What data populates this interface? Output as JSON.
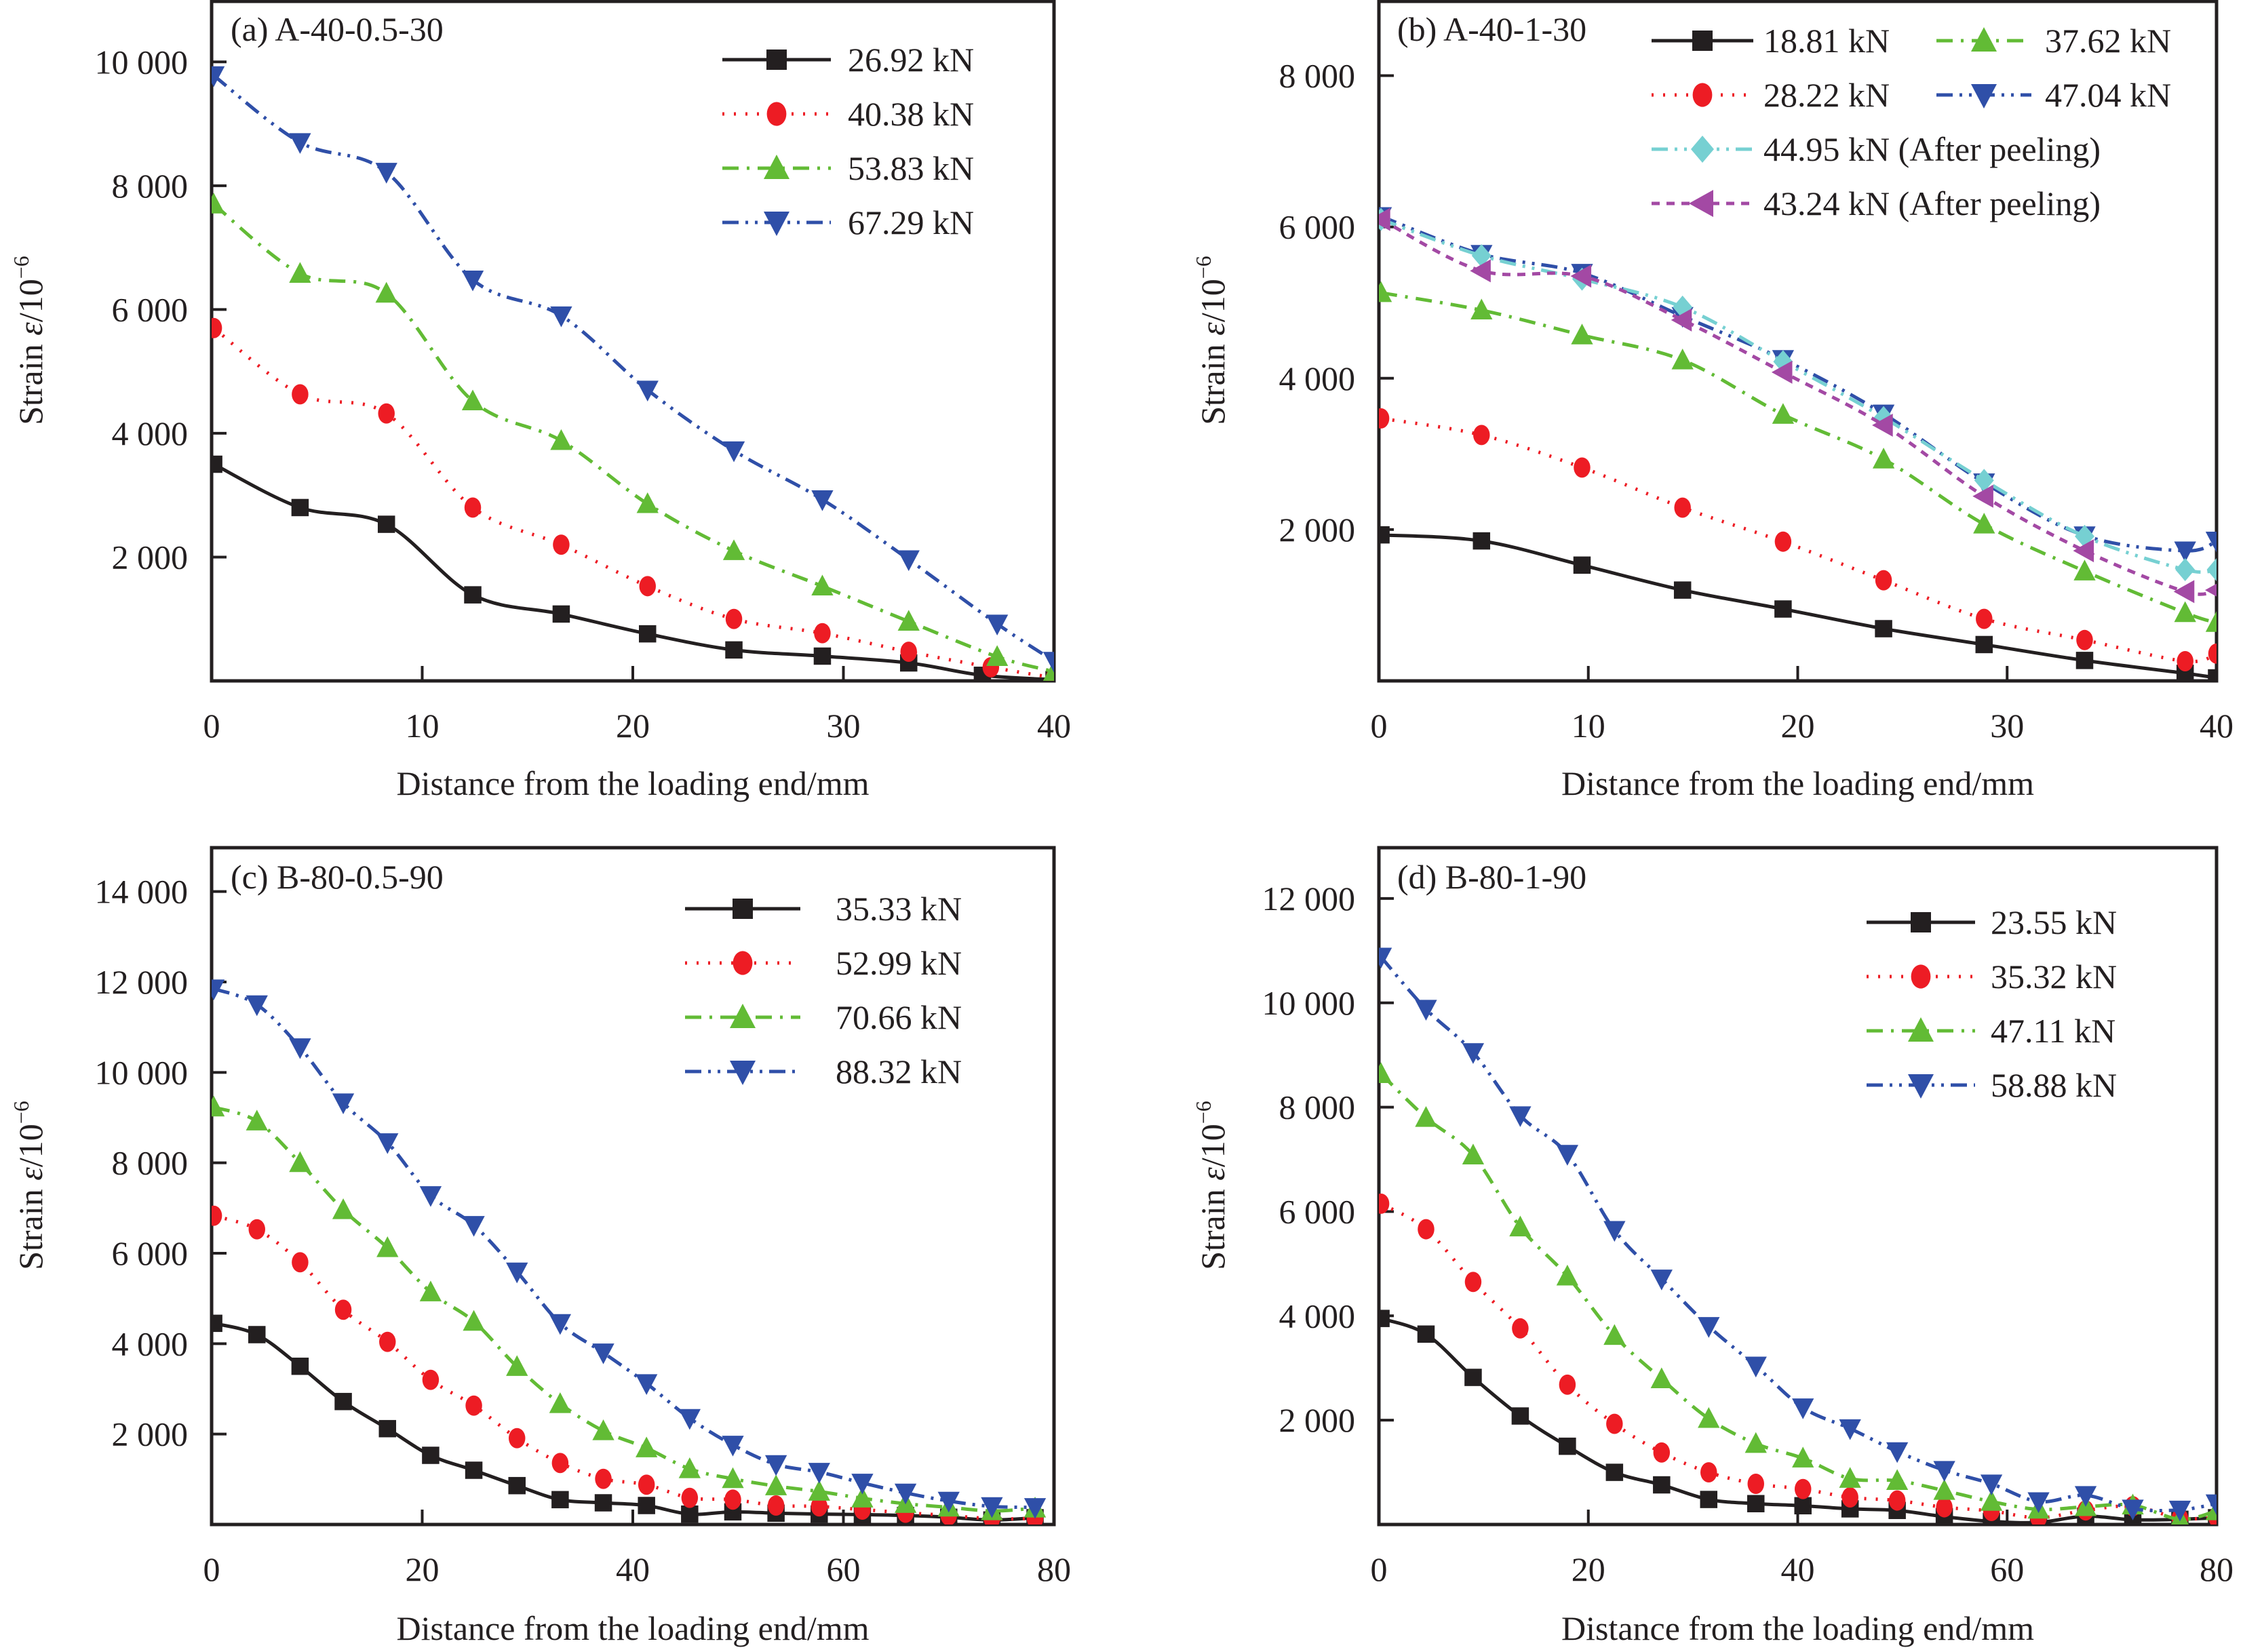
{
  "chart_data": [
    {
      "type": "line",
      "panel_label": "(a) A-40-0.5-30",
      "xlabel": "Distance from the loading end/mm",
      "ylabel_prefix": "Strain ",
      "ylabel_symbol": "ε",
      "ylabel_suffix": "/10",
      "ylabel_exp": "−6",
      "xlim": [
        0,
        40
      ],
      "ylim": [
        0,
        11000
      ],
      "xticks": [
        0,
        10,
        20,
        30,
        40
      ],
      "xtick_labels": [
        "0",
        "10",
        "20",
        "30",
        "40"
      ],
      "yticks": [
        2000,
        4000,
        6000,
        8000,
        10000
      ],
      "ytick_labels": [
        "2 000",
        "4 000",
        "6 000",
        "8 000",
        "10 000"
      ],
      "grid": false,
      "legend_position": "top-right",
      "legend_columns": 1,
      "series": [
        {
          "name": "26.92 kN",
          "color": "#231f20",
          "marker": "square",
          "dash": "solid",
          "x": [
            0.1,
            4.2,
            8.3,
            12.4,
            16.6,
            20.7,
            24.8,
            29.0,
            33.1,
            36.6,
            40.0
          ],
          "y": [
            3500,
            2800,
            2530,
            1390,
            1080,
            760,
            500,
            400,
            290,
            90,
            20
          ]
        },
        {
          "name": "40.38 kN",
          "color": "#ed1c24",
          "marker": "circle",
          "dash": "dot",
          "x": [
            0.1,
            4.2,
            8.3,
            12.4,
            16.6,
            20.7,
            24.8,
            29.0,
            33.1,
            37.0,
            40.0
          ],
          "y": [
            5700,
            4630,
            4320,
            2800,
            2200,
            1530,
            1000,
            770,
            470,
            220,
            50
          ]
        },
        {
          "name": "53.83 kN",
          "color": "#62bb35",
          "marker": "triangle-up",
          "dash": "dashdot",
          "x": [
            0.1,
            4.2,
            8.3,
            12.4,
            16.6,
            20.7,
            24.8,
            29.0,
            33.1,
            37.3,
            40.0
          ],
          "y": [
            7700,
            6580,
            6260,
            4520,
            3880,
            2860,
            2100,
            1530,
            960,
            390,
            150
          ]
        },
        {
          "name": "67.29 kN",
          "color": "#2f4fa8",
          "marker": "triangle-down",
          "dash": "dashdotdot",
          "x": [
            0.1,
            4.2,
            8.3,
            12.4,
            16.6,
            20.7,
            24.8,
            29.0,
            33.1,
            37.3,
            40.0
          ],
          "y": [
            9780,
            8700,
            8220,
            6480,
            5900,
            4700,
            3720,
            2930,
            1960,
            920,
            320
          ]
        }
      ]
    },
    {
      "type": "line",
      "panel_label": "(b) A-40-1-30",
      "xlabel": "Distance from the loading end/mm",
      "ylabel_prefix": "Strain ",
      "ylabel_symbol": "ε",
      "ylabel_suffix": "/10",
      "ylabel_exp": "−6",
      "xlim": [
        0,
        40
      ],
      "ylim": [
        0,
        9000
      ],
      "xticks": [
        0,
        10,
        20,
        30,
        40
      ],
      "xtick_labels": [
        "0",
        "10",
        "20",
        "30",
        "40"
      ],
      "yticks": [
        2000,
        4000,
        6000,
        8000
      ],
      "ytick_labels": [
        "2 000",
        "4 000",
        "6 000",
        "8 000"
      ],
      "grid": false,
      "legend_position": "top-right",
      "legend_columns": 2,
      "series": [
        {
          "name": "18.81 kN",
          "color": "#231f20",
          "marker": "square",
          "dash": "solid",
          "x": [
            0.1,
            4.9,
            9.7,
            14.5,
            19.3,
            24.1,
            28.9,
            33.7,
            38.5,
            40.0
          ],
          "y": [
            1930,
            1850,
            1530,
            1200,
            950,
            690,
            480,
            270,
            100,
            40
          ]
        },
        {
          "name": "28.22 kN",
          "color": "#ed1c24",
          "marker": "circle",
          "dash": "dot",
          "x": [
            0.1,
            4.9,
            9.7,
            14.5,
            19.3,
            24.1,
            28.9,
            33.7,
            38.5,
            40.0
          ],
          "y": [
            3470,
            3250,
            2820,
            2290,
            1840,
            1330,
            820,
            540,
            260,
            360
          ]
        },
        {
          "name": "37.62 kN",
          "color": "#62bb35",
          "marker": "triangle-up",
          "dash": "dashdot",
          "x": [
            0.1,
            4.9,
            9.7,
            14.5,
            19.3,
            24.1,
            28.9,
            33.7,
            38.5,
            40.0
          ],
          "y": [
            5130,
            4900,
            4570,
            4240,
            3520,
            2930,
            2070,
            1450,
            900,
            770
          ]
        },
        {
          "name": "47.04 kN",
          "color": "#2f4fa8",
          "marker": "triangle-down",
          "dash": "dashdotdot",
          "x": [
            0.1,
            4.9,
            9.7,
            14.5,
            19.3,
            24.1,
            28.9,
            33.7,
            38.5,
            40.0
          ],
          "y": [
            6140,
            5640,
            5390,
            4820,
            4250,
            3530,
            2620,
            1920,
            1720,
            1850
          ]
        },
        {
          "name": "44.95 kN (After peeling)",
          "color": "#76d0d2",
          "marker": "diamond",
          "dash": "dashdotdot",
          "x": [
            0.1,
            4.9,
            9.7,
            14.5,
            19.3,
            24.1,
            28.9,
            33.7,
            38.5,
            40.0
          ],
          "y": [
            6100,
            5620,
            5310,
            4940,
            4220,
            3480,
            2650,
            1910,
            1470,
            1470
          ]
        },
        {
          "name": "43.24 kN (After peeling)",
          "color": "#a349a4",
          "marker": "triangle-left",
          "dash": "dash",
          "x": [
            0.1,
            4.9,
            9.7,
            14.5,
            19.3,
            24.1,
            28.9,
            33.7,
            38.5,
            40.0
          ],
          "y": [
            6100,
            5420,
            5350,
            4770,
            4080,
            3380,
            2440,
            1720,
            1180,
            1200
          ]
        }
      ]
    },
    {
      "type": "line",
      "panel_label": "(c) B-80-0.5-90",
      "xlabel": "Distance from the loading end/mm",
      "ylabel_prefix": "Strain ",
      "ylabel_symbol": "ε",
      "ylabel_suffix": "/10",
      "ylabel_exp": "−6",
      "xlim": [
        0,
        80
      ],
      "ylim": [
        0,
        15000
      ],
      "xticks": [
        0,
        20,
        40,
        60,
        80
      ],
      "xtick_labels": [
        "0",
        "20",
        "40",
        "60",
        "80"
      ],
      "yticks": [
        2000,
        4000,
        6000,
        8000,
        10000,
        12000,
        14000
      ],
      "ytick_labels": [
        "2 000",
        "4 000",
        "6 000",
        "8 000",
        "10 000",
        "12 000",
        "14 000"
      ],
      "grid": false,
      "legend_position": "top-right",
      "legend_columns": 1,
      "series": [
        {
          "name": "35.33 kN",
          "color": "#231f20",
          "marker": "square",
          "dash": "solid",
          "x": [
            0.2,
            4.3,
            8.4,
            12.5,
            16.7,
            20.8,
            24.9,
            29.0,
            33.1,
            37.2,
            41.3,
            45.4,
            49.5,
            53.6,
            57.7,
            61.8,
            65.9,
            70.0,
            74.1,
            78.2
          ],
          "y": [
            4450,
            4200,
            3500,
            2720,
            2120,
            1530,
            1200,
            860,
            550,
            480,
            420,
            230,
            280,
            250,
            230,
            220,
            200,
            160,
            100,
            150
          ]
        },
        {
          "name": "52.99 kN",
          "color": "#ed1c24",
          "marker": "circle",
          "dash": "dot",
          "x": [
            0.2,
            4.3,
            8.4,
            12.5,
            16.7,
            20.8,
            24.9,
            29.0,
            33.1,
            37.2,
            41.3,
            45.4,
            49.5,
            53.6,
            57.7,
            61.8,
            65.9,
            70.0,
            74.1,
            78.2
          ],
          "y": [
            6830,
            6530,
            5800,
            4750,
            4040,
            3200,
            2630,
            1910,
            1360,
            1010,
            880,
            590,
            550,
            420,
            400,
            330,
            260,
            200,
            130,
            130
          ]
        },
        {
          "name": "70.66 kN",
          "color": "#62bb35",
          "marker": "triangle-up",
          "dash": "dashdot",
          "x": [
            0.2,
            4.3,
            8.4,
            12.5,
            16.7,
            20.8,
            24.9,
            29.0,
            33.1,
            37.2,
            41.3,
            45.4,
            49.5,
            53.6,
            57.7,
            61.8,
            65.9,
            70.0,
            74.1,
            78.2
          ],
          "y": [
            9230,
            8920,
            8000,
            6960,
            6120,
            5140,
            4490,
            3490,
            2670,
            2070,
            1690,
            1230,
            1010,
            850,
            730,
            580,
            460,
            380,
            300,
            360
          ]
        },
        {
          "name": "88.32 kN",
          "color": "#2f4fa8",
          "marker": "triangle-down",
          "dash": "dashdotdot",
          "x": [
            0.2,
            4.3,
            8.4,
            12.5,
            16.7,
            20.8,
            24.9,
            29.0,
            33.1,
            37.2,
            41.3,
            45.4,
            49.5,
            53.6,
            57.7,
            61.8,
            65.9,
            70.0,
            74.1,
            78.2
          ],
          "y": [
            11850,
            11500,
            10550,
            9330,
            8450,
            7280,
            6620,
            5590,
            4450,
            3800,
            3120,
            2350,
            1760,
            1330,
            1160,
            920,
            700,
            520,
            400,
            380
          ]
        }
      ]
    },
    {
      "type": "line",
      "panel_label": "(d) B-80-1-90",
      "xlabel": "Distance from the loading end/mm",
      "ylabel_prefix": "Strain ",
      "ylabel_symbol": "ε",
      "ylabel_suffix": "/10",
      "ylabel_exp": "−6",
      "xlim": [
        0,
        80
      ],
      "ylim": [
        0,
        13000
      ],
      "xticks": [
        0,
        20,
        40,
        60,
        80
      ],
      "xtick_labels": [
        "0",
        "20",
        "40",
        "60",
        "80"
      ],
      "yticks": [
        2000,
        4000,
        6000,
        8000,
        10000,
        12000
      ],
      "ytick_labels": [
        "2 000",
        "4 000",
        "6 000",
        "8 000",
        "10 000",
        "12 000"
      ],
      "grid": false,
      "legend_position": "top-right",
      "legend_columns": 1,
      "series": [
        {
          "name": "23.55 kN",
          "color": "#231f20",
          "marker": "square",
          "dash": "solid",
          "x": [
            0.2,
            4.5,
            9.0,
            13.5,
            18.0,
            22.5,
            27.0,
            31.5,
            36.0,
            40.5,
            45.0,
            49.5,
            54.0,
            58.5,
            63.0,
            67.5,
            72.0,
            76.5,
            80.0
          ],
          "y": [
            3950,
            3650,
            2820,
            2080,
            1500,
            1000,
            760,
            480,
            400,
            360,
            300,
            270,
            150,
            60,
            40,
            160,
            90,
            100,
            130
          ]
        },
        {
          "name": "35.32 kN",
          "color": "#ed1c24",
          "marker": "circle",
          "dash": "dot",
          "x": [
            0.2,
            4.5,
            9.0,
            13.5,
            18.0,
            22.5,
            27.0,
            31.5,
            36.0,
            40.5,
            45.0,
            49.5,
            54.0,
            58.5,
            63.0,
            67.5,
            72.0,
            76.5,
            80.0
          ],
          "y": [
            6150,
            5660,
            4650,
            3760,
            2680,
            1930,
            1380,
            1000,
            780,
            680,
            520,
            460,
            330,
            260,
            130,
            270,
            350,
            120,
            140
          ]
        },
        {
          "name": "47.11 kN",
          "color": "#62bb35",
          "marker": "triangle-up",
          "dash": "dashdot",
          "x": [
            0.2,
            4.5,
            9.0,
            13.5,
            18.0,
            22.5,
            27.0,
            31.5,
            36.0,
            40.5,
            45.0,
            49.5,
            54.0,
            58.5,
            63.0,
            67.5,
            72.0,
            76.5,
            80.0
          ],
          "y": [
            8640,
            7800,
            7080,
            5700,
            4760,
            3620,
            2790,
            2030,
            1550,
            1270,
            880,
            840,
            650,
            440,
            290,
            340,
            370,
            100,
            260
          ]
        },
        {
          "name": "58.88 kN",
          "color": "#2f4fa8",
          "marker": "triangle-down",
          "dash": "dashdotdot",
          "x": [
            0.2,
            4.5,
            9.0,
            13.5,
            18.0,
            22.5,
            27.0,
            31.5,
            36.0,
            40.5,
            45.0,
            49.5,
            54.0,
            58.5,
            63.0,
            67.5,
            72.0,
            76.5,
            80.0
          ],
          "y": [
            10880,
            9880,
            9050,
            7840,
            7100,
            5640,
            4710,
            3800,
            3040,
            2240,
            1840,
            1400,
            1040,
            780,
            440,
            560,
            300,
            280,
            400
          ]
        }
      ]
    }
  ]
}
